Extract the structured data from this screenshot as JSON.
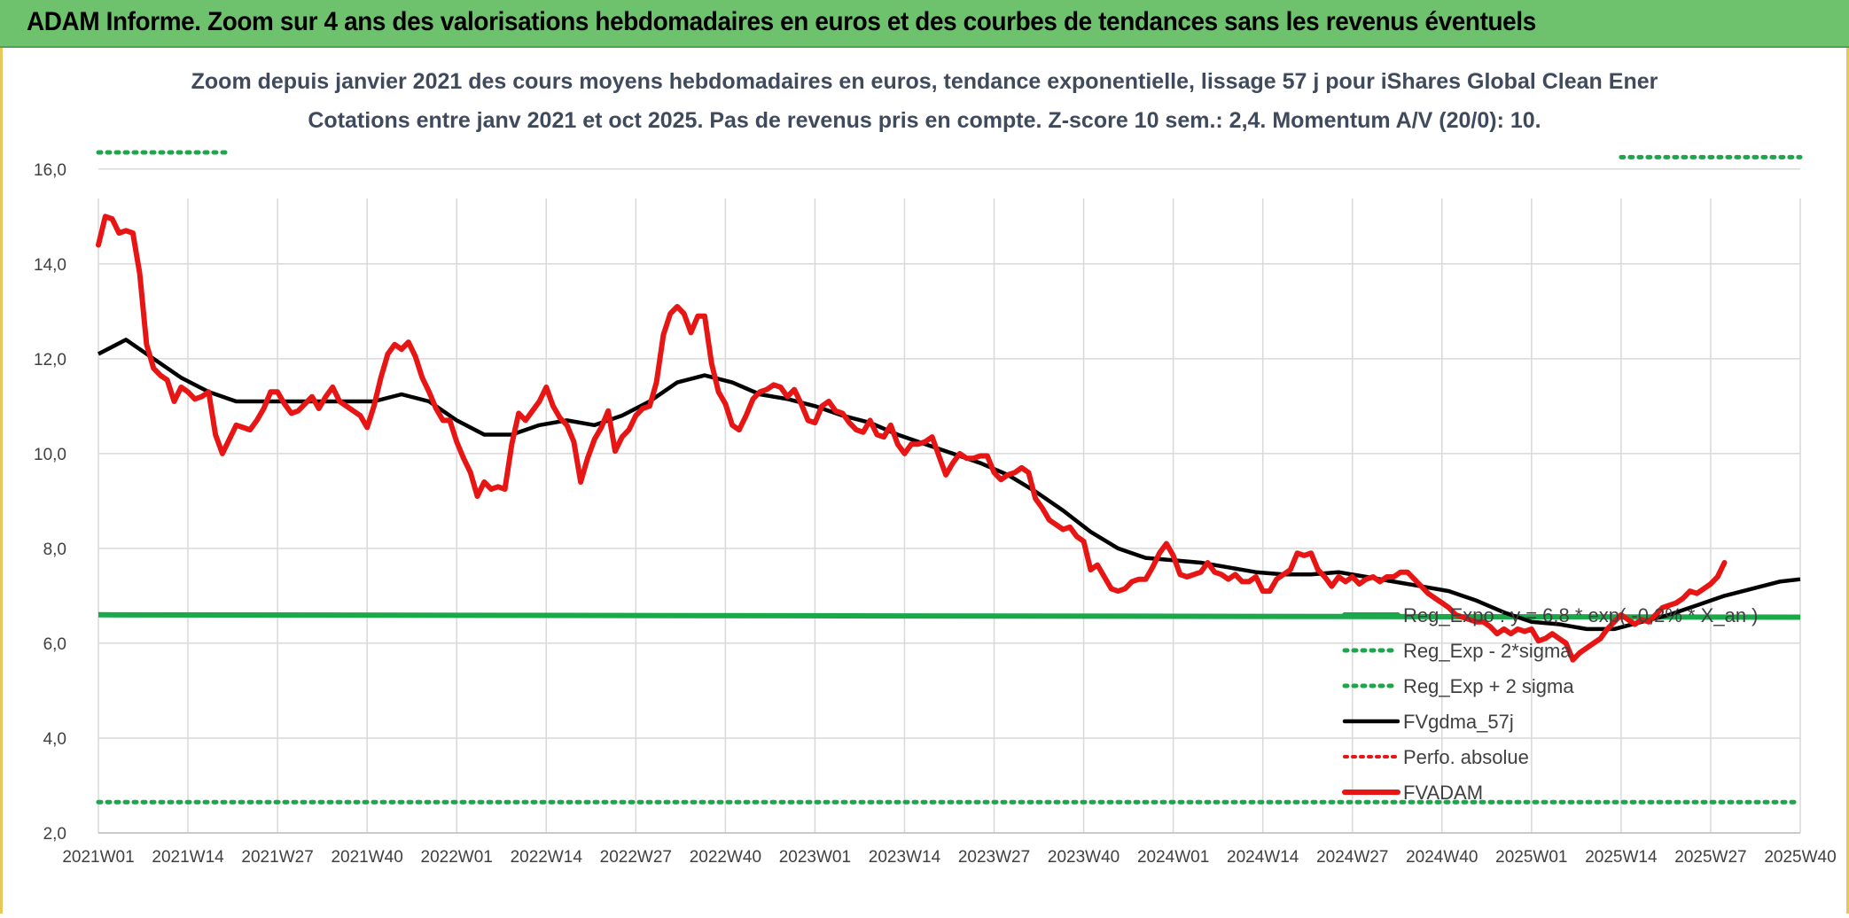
{
  "banner": {
    "title": "ADAM Informe. Zoom sur 4 ans des valorisations hebdomadaires en euros et des courbes de tendances sans les revenus éventuels"
  },
  "colors": {
    "banner_bg": "#6ec26e",
    "price_line": "#e81515",
    "smooth_line": "#000000",
    "regression": "#1aa84a",
    "perfo": "#e81515",
    "grid": "#d9d9d9"
  },
  "chart_data": {
    "type": "line",
    "title": "Zoom depuis janvier 2021 des cours moyens hebdomadaires en euros, tendance exponentielle, lissage 57 j pour iShares Global Clean Ener",
    "subtitle": "Cotations entre janv 2021 et oct 2025. Pas de revenus pris en compte. Z-score 10 sem.: 2,4. Momentum A/V (20/0): 10.",
    "x_tick_labels": [
      "2021W01",
      "2021W14",
      "2021W27",
      "2021W40",
      "2022W01",
      "2022W14",
      "2022W27",
      "2022W40",
      "2023W01",
      "2023W14",
      "2023W27",
      "2023W40",
      "2024W01",
      "2024W14",
      "2024W27",
      "2024W40",
      "2025W01",
      "2025W14",
      "2025W27",
      "2025W40"
    ],
    "y_tick_labels": [
      "2,0",
      "4,0",
      "6,0",
      "8,0",
      "10,0",
      "12,0",
      "14,0",
      "16,0"
    ],
    "ylim": [
      2,
      16.5
    ],
    "grid": true,
    "legend_position": "bottom-right",
    "legend": [
      {
        "label": "Reg_Expo : y = 6,8 * exp( -0,2% * X_an )",
        "style": "solid-green-thick"
      },
      {
        "label": "Reg_Exp - 2*sigma",
        "style": "dotted-green"
      },
      {
        "label": "Reg_Exp + 2 sigma",
        "style": "dotted-green"
      },
      {
        "label": "FVgdma_57j",
        "style": "solid-black"
      },
      {
        "label": "Perfo. absolue",
        "style": "dotted-red"
      },
      {
        "label": "FVADAM",
        "style": "solid-red-thick"
      }
    ],
    "series": [
      {
        "name": "FVADAM",
        "x_week_index": [
          0,
          1,
          2,
          3,
          4,
          5,
          6,
          7,
          8,
          9,
          10,
          11,
          12,
          13,
          14,
          15,
          16,
          17,
          18,
          19,
          20,
          21,
          22,
          23,
          24,
          25,
          26,
          27,
          28,
          29,
          30,
          31,
          32,
          33,
          34,
          35,
          36,
          37,
          38,
          39,
          40,
          41,
          42,
          43,
          44,
          45,
          46,
          47,
          48,
          49,
          50,
          51,
          52,
          53,
          54,
          55,
          56,
          57,
          58,
          59,
          60,
          61,
          62,
          63,
          64,
          65,
          66,
          67,
          68,
          69,
          70,
          71,
          72,
          73,
          74,
          75,
          76,
          77,
          78,
          79,
          80,
          81,
          82,
          83,
          84,
          85,
          86,
          87,
          88,
          89,
          90,
          91,
          92,
          93,
          94,
          95,
          96,
          97,
          98,
          99,
          100,
          101,
          102,
          103,
          104,
          105,
          106,
          107,
          108,
          109,
          110,
          111,
          112,
          113,
          114,
          115,
          116,
          117,
          118,
          119,
          120,
          121,
          122,
          123,
          124,
          125,
          126,
          127,
          128,
          129,
          130,
          131,
          132,
          133,
          134,
          135,
          136,
          137,
          138,
          139,
          140,
          141,
          142,
          143,
          144,
          145,
          146,
          147,
          148,
          149,
          150,
          151,
          152,
          153,
          154,
          155,
          156,
          157,
          158,
          159,
          160,
          161,
          162,
          163,
          164,
          165,
          166,
          167,
          168,
          169,
          170,
          171,
          172,
          173,
          174,
          175,
          176,
          177,
          178,
          179,
          180,
          181,
          182,
          183,
          184,
          185,
          186,
          187,
          188,
          189,
          190,
          191,
          192,
          193,
          194,
          195,
          196,
          197,
          198,
          199,
          200,
          201,
          202,
          203,
          204,
          205,
          206,
          207,
          208,
          209,
          210,
          211,
          212,
          213,
          214,
          215,
          216,
          217,
          218,
          219,
          220,
          221,
          222,
          223,
          224,
          225,
          226,
          227,
          228,
          229,
          230,
          231,
          232,
          233,
          234,
          235,
          236,
          237,
          238,
          239,
          240,
          241,
          242,
          243,
          244,
          245,
          246,
          247
        ],
        "values": [
          14.4,
          15.0,
          14.95,
          14.65,
          14.7,
          14.65,
          13.8,
          12.3,
          11.8,
          11.65,
          11.55,
          11.1,
          11.4,
          11.3,
          11.15,
          11.2,
          11.3,
          10.4,
          10.0,
          10.3,
          10.6,
          10.55,
          10.5,
          10.7,
          10.95,
          11.3,
          11.3,
          11.05,
          10.85,
          10.9,
          11.05,
          11.2,
          10.95,
          11.2,
          11.4,
          11.1,
          11.0,
          10.9,
          10.8,
          10.55,
          11.0,
          11.6,
          12.1,
          12.3,
          12.2,
          12.35,
          12.05,
          11.6,
          11.3,
          10.95,
          10.7,
          10.7,
          10.25,
          9.9,
          9.6,
          9.1,
          9.4,
          9.25,
          9.3,
          9.25,
          10.2,
          10.85,
          10.7,
          10.9,
          11.1,
          11.4,
          11.0,
          10.75,
          10.6,
          10.25,
          9.4,
          9.9,
          10.3,
          10.55,
          10.9,
          10.05,
          10.35,
          10.5,
          10.8,
          10.95,
          11.0,
          11.5,
          12.5,
          12.95,
          13.1,
          12.95,
          12.55,
          12.9,
          12.9,
          11.9,
          11.3,
          11.05,
          10.6,
          10.5,
          10.8,
          11.15,
          11.3,
          11.35,
          11.45,
          11.4,
          11.2,
          11.35,
          11.05,
          10.7,
          10.65,
          11.0,
          11.1,
          10.9,
          10.85,
          10.65,
          10.5,
          10.45,
          10.7,
          10.4,
          10.35,
          10.6,
          10.2,
          10.0,
          10.2,
          10.2,
          10.25,
          10.35,
          9.95,
          9.55,
          9.8,
          10.0,
          9.9,
          9.9,
          9.95,
          9.95,
          9.6,
          9.45,
          9.55,
          9.6,
          9.7,
          9.6,
          9.05,
          8.85,
          8.6,
          8.5,
          8.4,
          8.45,
          8.25,
          8.15,
          7.55,
          7.65,
          7.4,
          7.15,
          7.1,
          7.15,
          7.3,
          7.35,
          7.35,
          7.6,
          7.9,
          8.1,
          7.85,
          7.45,
          7.4,
          7.45,
          7.5,
          7.7,
          7.5,
          7.45,
          7.35,
          7.45,
          7.3,
          7.3,
          7.4,
          7.1,
          7.1,
          7.35,
          7.45,
          7.55,
          7.9,
          7.85,
          7.9,
          7.55,
          7.4,
          7.2,
          7.4,
          7.3,
          7.4,
          7.25,
          7.35,
          7.4,
          7.3,
          7.4,
          7.4,
          7.5,
          7.5,
          7.35,
          7.2,
          7.05,
          6.95,
          6.85,
          6.75,
          6.6,
          6.55,
          6.5,
          6.45,
          6.45,
          6.35,
          6.2,
          6.3,
          6.2,
          6.3,
          6.25,
          6.3,
          6.05,
          6.1,
          6.2,
          6.1,
          6.0,
          5.65,
          5.8,
          5.9,
          6.0,
          6.1,
          6.3,
          6.45,
          6.6,
          6.5,
          6.4,
          6.5,
          6.45,
          6.6,
          6.75,
          6.8,
          6.85,
          6.95,
          7.1,
          7.05,
          7.15,
          7.25,
          7.4,
          7.7
        ],
        "color": "#e81515"
      },
      {
        "name": "FVgdma_57j",
        "x_week_index": [
          0,
          4,
          8,
          12,
          16,
          20,
          24,
          28,
          32,
          36,
          40,
          44,
          48,
          52,
          56,
          60,
          64,
          68,
          72,
          76,
          80,
          84,
          88,
          92,
          96,
          100,
          104,
          108,
          112,
          116,
          120,
          124,
          128,
          132,
          136,
          140,
          144,
          148,
          152,
          156,
          160,
          164,
          168,
          172,
          176,
          180,
          184,
          188,
          192,
          196,
          200,
          204,
          208,
          212,
          216,
          220,
          224,
          228,
          232,
          236,
          240,
          244,
          247
        ],
        "values": [
          12.1,
          12.4,
          12.0,
          11.6,
          11.3,
          11.1,
          11.1,
          11.1,
          11.1,
          11.1,
          11.1,
          11.25,
          11.1,
          10.7,
          10.4,
          10.4,
          10.6,
          10.7,
          10.6,
          10.8,
          11.1,
          11.5,
          11.65,
          11.5,
          11.25,
          11.15,
          11.0,
          10.8,
          10.65,
          10.4,
          10.2,
          10.0,
          9.8,
          9.55,
          9.2,
          8.8,
          8.35,
          8.0,
          7.8,
          7.75,
          7.7,
          7.6,
          7.5,
          7.45,
          7.45,
          7.5,
          7.4,
          7.3,
          7.2,
          7.1,
          6.9,
          6.65,
          6.45,
          6.4,
          6.3,
          6.3,
          6.45,
          6.6,
          6.8,
          7.0,
          7.15,
          7.3,
          7.35
        ],
        "color": "#000000"
      },
      {
        "name": "Reg_Expo",
        "x_week_index": [
          0,
          247
        ],
        "values": [
          6.6,
          6.55
        ],
        "color": "#1aa84a"
      },
      {
        "name": "Reg_Exp - 2*sigma",
        "x_week_index": [
          0,
          247
        ],
        "values": [
          2.65,
          2.65
        ],
        "color": "#1aa84a"
      },
      {
        "name": "Reg_Exp + 2 sigma",
        "x_week_index": [
          0,
          19,
          221,
          247
        ],
        "values": [
          16.35,
          16.35,
          16.25,
          16.25
        ],
        "color": "#1aa84a"
      }
    ]
  }
}
